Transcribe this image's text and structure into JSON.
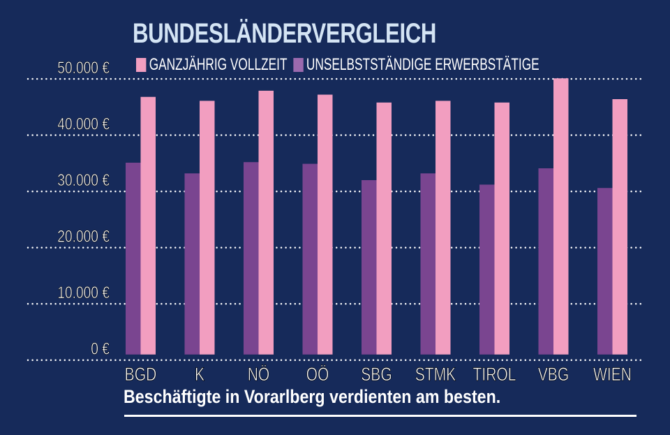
{
  "chart_data": {
    "type": "bar",
    "title": "BUNDESLÄNDERVERGLEICH",
    "subtitle": "Beschäftigte in Vorarlberg verdienten am besten.",
    "categories": [
      "BGD",
      "K",
      "NÖ",
      "OÖ",
      "SBG",
      "STMK",
      "TIROL",
      "VBG",
      "WIEN"
    ],
    "series": [
      {
        "name": "UNSELBSTSTÄNDIGE ERWERBSTÄTIGE",
        "color": "#7a4590",
        "legend_color": "#9b6aae",
        "values": [
          35100,
          33200,
          35200,
          34900,
          32000,
          33200,
          31200,
          34100,
          30600
        ]
      },
      {
        "name": "GANZJÄHRIG VOLLZEIT",
        "color": "#f29ec0",
        "values": [
          46800,
          46100,
          47900,
          47200,
          45800,
          46100,
          45800,
          50100,
          46400
        ]
      }
    ],
    "legend_order": [
      "GANZJÄHRIG VOLLZEIT",
      "UNSELBSTSTÄNDIGE ERWERBSTÄTIGE"
    ],
    "yticks": [
      0,
      10000,
      20000,
      30000,
      40000,
      50000
    ],
    "ytick_labels": [
      "0 €",
      "10.000 €",
      "20.000 €",
      "30.000 €",
      "40.000 €",
      "50.000 €"
    ],
    "ylim": [
      0,
      50000
    ],
    "grid": "dotted horizontal",
    "legend_placement": "top",
    "background": "#162a5a"
  }
}
